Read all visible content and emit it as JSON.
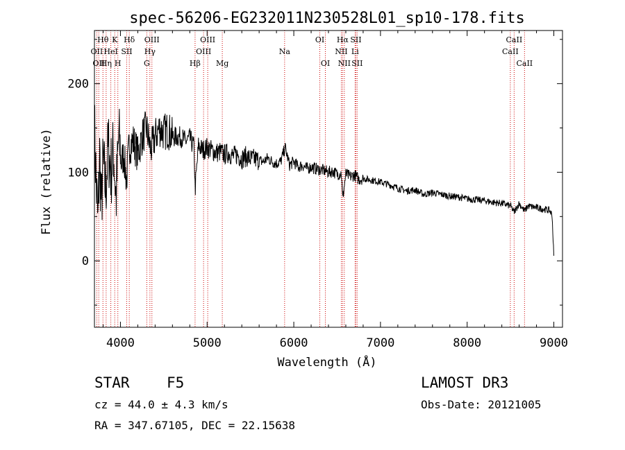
{
  "chart_data": {
    "type": "line",
    "title": "spec-56206-EG232011N230528L01_sp10-178.fits",
    "xlabel": "Wavelength (Å)",
    "ylabel": "Flux (relative)",
    "xlim": [
      3700,
      9100
    ],
    "ylim": [
      -75,
      260
    ],
    "xticks": [
      4000,
      5000,
      6000,
      7000,
      8000,
      9000
    ],
    "yticks": [
      0,
      100,
      200
    ],
    "series": [
      {
        "name": "spectrum",
        "x": [
          3700,
          3720,
          3740,
          3760,
          3780,
          3800,
          3830,
          3860,
          3890,
          3920,
          3950,
          3980,
          4010,
          4040,
          4070,
          4100,
          4150,
          4200,
          4250,
          4300,
          4350,
          4400,
          4450,
          4500,
          4550,
          4600,
          4650,
          4700,
          4750,
          4800,
          4850,
          4861,
          4900,
          4950,
          5000,
          5050,
          5100,
          5150,
          5200,
          5250,
          5300,
          5350,
          5400,
          5450,
          5500,
          5550,
          5600,
          5650,
          5700,
          5750,
          5800,
          5850,
          5900,
          5950,
          6000,
          6050,
          6100,
          6150,
          6200,
          6250,
          6300,
          6350,
          6400,
          6450,
          6500,
          6550,
          6563,
          6600,
          6650,
          6700,
          6750,
          6800,
          6850,
          6900,
          6950,
          7000,
          7100,
          7200,
          7300,
          7400,
          7500,
          7600,
          7700,
          7800,
          7900,
          8000,
          8100,
          8200,
          8300,
          8400,
          8500,
          8542,
          8600,
          8662,
          8700,
          8800,
          8900,
          8950,
          8980,
          9000
        ],
        "y": [
          150,
          90,
          40,
          120,
          60,
          110,
          80,
          130,
          100,
          125,
          70,
          140,
          110,
          120,
          90,
          130,
          135,
          120,
          140,
          150,
          125,
          140,
          150,
          145,
          148,
          140,
          140,
          140,
          135,
          138,
          128,
          80,
          130,
          125,
          128,
          125,
          122,
          123,
          120,
          122,
          118,
          120,
          115,
          118,
          115,
          115,
          113,
          112,
          116,
          112,
          110,
          112,
          128,
          108,
          112,
          106,
          108,
          104,
          106,
          104,
          103,
          102,
          100,
          101,
          98,
          99,
          70,
          98,
          95,
          97,
          92,
          93,
          92,
          91,
          90,
          89,
          86,
          82,
          79,
          80,
          75,
          77,
          75,
          73,
          72,
          70,
          69,
          68,
          66,
          65,
          62,
          55,
          65,
          56,
          62,
          60,
          58,
          57,
          52,
          5
        ]
      }
    ],
    "spectral_lines": [
      {
        "wavelength": 3727,
        "label": "OII",
        "row": 2
      },
      {
        "wavelength": 3750,
        "label": "OII",
        "row": 3
      },
      {
        "wavelength": 3798,
        "label": "Hθ",
        "row": 1
      },
      {
        "wavelength": 3835,
        "label": "Hη",
        "row": 3
      },
      {
        "wavelength": 3889,
        "label": "HeI",
        "row": 2
      },
      {
        "wavelength": 3934,
        "label": "K",
        "row": 1
      },
      {
        "wavelength": 3970,
        "label": "H",
        "row": 3
      },
      {
        "wavelength": 4072,
        "label": "SII",
        "row": 2
      },
      {
        "wavelength": 4102,
        "label": "Hδ",
        "row": 1
      },
      {
        "wavelength": 4304,
        "label": "G",
        "row": 3
      },
      {
        "wavelength": 4340,
        "label": "Hγ",
        "row": 2
      },
      {
        "wavelength": 4363,
        "label": "OIII",
        "row": 1
      },
      {
        "wavelength": 4861,
        "label": "Hβ",
        "row": 3
      },
      {
        "wavelength": 4959,
        "label": "OIII",
        "row": 2
      },
      {
        "wavelength": 5007,
        "label": "OIII",
        "row": 1
      },
      {
        "wavelength": 5175,
        "label": "Mg",
        "row": 3
      },
      {
        "wavelength": 5894,
        "label": "Na",
        "row": 2
      },
      {
        "wavelength": 6300,
        "label": "OI",
        "row": 1
      },
      {
        "wavelength": 6364,
        "label": "OI",
        "row": 3
      },
      {
        "wavelength": 6548,
        "label": "NII",
        "row": 2
      },
      {
        "wavelength": 6563,
        "label": "Hα",
        "row": 1
      },
      {
        "wavelength": 6583,
        "label": "NII",
        "row": 3
      },
      {
        "wavelength": 6707,
        "label": "Li",
        "row": 2
      },
      {
        "wavelength": 6716,
        "label": "SII",
        "row": 1
      },
      {
        "wavelength": 6731,
        "label": "SII",
        "row": 3
      },
      {
        "wavelength": 8498,
        "label": "CaII",
        "row": 2
      },
      {
        "wavelength": 8542,
        "label": "CaII",
        "row": 1
      },
      {
        "wavelength": 8662,
        "label": "CaII",
        "row": 3
      }
    ]
  },
  "info": {
    "class_label": "STAR",
    "subclass": "F5",
    "survey": "LAMOST DR3",
    "cz": "cz = 44.0 ± 4.3 km/s",
    "obs_date": "Obs-Date: 20121005",
    "coords": "RA = 347.67105, DEC =  22.15638"
  },
  "colors": {
    "line_markers": "#cc0000",
    "spectrum": "#000000",
    "background": "#ffffff"
  }
}
